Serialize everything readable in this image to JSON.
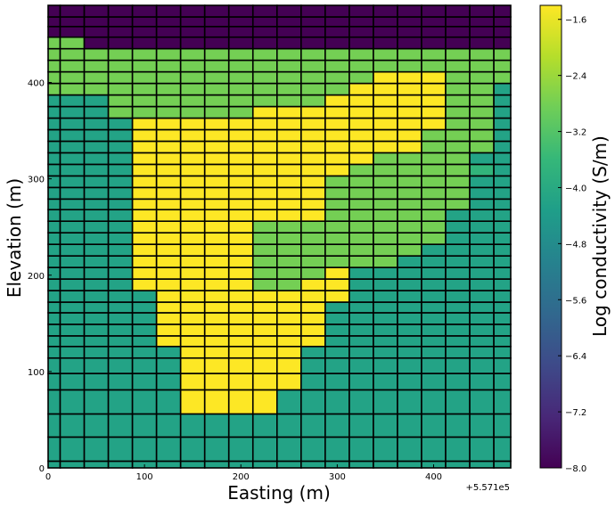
{
  "chart_data": {
    "type": "heatmap",
    "title": "",
    "xlabel": "Easting (m)",
    "ylabel": "Elevation (m)",
    "x_offset_label": "+5.571e5",
    "xlim": [
      0,
      480
    ],
    "ylim": [
      0,
      480
    ],
    "xticks": [
      0,
      100,
      200,
      300,
      400
    ],
    "yticks": [
      0,
      100,
      200,
      300,
      400
    ],
    "x_edges": [
      0,
      12.5,
      37.5,
      62.5,
      87.5,
      112.5,
      137.5,
      162.5,
      187.5,
      212.5,
      237.5,
      262.5,
      287.5,
      312.5,
      337.5,
      362.5,
      387.5,
      412.5,
      437.5,
      462.5,
      480
    ],
    "y_edges": [
      0,
      7,
      32,
      56,
      81,
      98,
      114,
      126,
      137,
      149,
      161,
      172,
      184,
      196,
      208,
      220,
      232,
      244,
      256,
      268,
      279,
      291,
      303,
      315,
      327,
      339,
      351,
      363,
      375,
      387,
      399,
      411,
      423,
      435,
      447,
      458,
      468,
      480
    ],
    "values": [
      [
        -4.2,
        -4.2,
        -4.2,
        -4.2,
        -4.2,
        -4.2,
        -4.2,
        -4.2,
        -4.2,
        -4.2,
        -4.2,
        -4.2,
        -4.2,
        -4.2,
        -4.2,
        -4.2,
        -4.2,
        -4.2,
        -4.2,
        -4.2
      ],
      [
        -4.2,
        -4.2,
        -4.2,
        -4.2,
        -4.2,
        -4.2,
        -4.2,
        -4.2,
        -4.2,
        -4.2,
        -4.2,
        -4.2,
        -4.2,
        -4.2,
        -4.2,
        -4.2,
        -4.2,
        -4.2,
        -4.2,
        -4.2
      ],
      [
        -4.2,
        -4.2,
        -4.2,
        -4.2,
        -4.2,
        -4.2,
        -4.2,
        -4.2,
        -4.2,
        -4.2,
        -4.2,
        -4.2,
        -4.2,
        -4.2,
        -4.2,
        -4.2,
        -4.2,
        -4.2,
        -4.2,
        -4.2
      ],
      [
        -4.2,
        -4.2,
        -4.2,
        -4.2,
        -4.2,
        -4.2,
        -1.4,
        -1.4,
        -1.4,
        -1.4,
        -4.2,
        -4.2,
        -4.2,
        -4.2,
        -4.2,
        -4.2,
        -4.2,
        -4.2,
        -4.2,
        -4.2
      ],
      [
        -4.2,
        -4.2,
        -4.2,
        -4.2,
        -4.2,
        -4.2,
        -1.4,
        -1.4,
        -1.4,
        -1.4,
        -1.4,
        -4.2,
        -4.2,
        -4.2,
        -4.2,
        -4.2,
        -4.2,
        -4.2,
        -4.2,
        -4.2
      ],
      [
        -4.2,
        -4.2,
        -4.2,
        -4.2,
        -4.2,
        -4.2,
        -1.4,
        -1.4,
        -1.4,
        -1.4,
        -1.4,
        -4.2,
        -4.2,
        -4.2,
        -4.2,
        -4.2,
        -4.2,
        -4.2,
        -4.2,
        -4.2
      ],
      [
        -4.2,
        -4.2,
        -4.2,
        -4.2,
        -4.2,
        -4.2,
        -1.4,
        -1.4,
        -1.4,
        -1.4,
        -1.4,
        -4.2,
        -4.2,
        -4.2,
        -4.2,
        -4.2,
        -4.2,
        -4.2,
        -4.2,
        -4.2
      ],
      [
        -4.2,
        -4.2,
        -4.2,
        -4.2,
        -4.2,
        -1.4,
        -1.4,
        -1.4,
        -1.4,
        -1.4,
        -1.4,
        -1.4,
        -4.2,
        -4.2,
        -4.2,
        -4.2,
        -4.2,
        -4.2,
        -4.2,
        -4.2
      ],
      [
        -4.2,
        -4.2,
        -4.2,
        -4.2,
        -4.2,
        -1.4,
        -1.4,
        -1.4,
        -1.4,
        -1.4,
        -1.4,
        -1.4,
        -4.2,
        -4.2,
        -4.2,
        -4.2,
        -4.2,
        -4.2,
        -4.2,
        -4.2
      ],
      [
        -4.2,
        -4.2,
        -4.2,
        -4.2,
        -4.2,
        -1.4,
        -1.4,
        -1.4,
        -1.4,
        -1.4,
        -1.4,
        -1.4,
        -4.2,
        -4.2,
        -4.2,
        -4.2,
        -4.2,
        -4.2,
        -4.2,
        -4.2
      ],
      [
        -4.2,
        -4.2,
        -4.2,
        -4.2,
        -4.2,
        -1.4,
        -1.4,
        -1.4,
        -1.4,
        -1.4,
        -1.4,
        -1.4,
        -4.2,
        -4.2,
        -4.2,
        -4.2,
        -4.2,
        -4.2,
        -4.2,
        -4.2
      ],
      [
        -4.2,
        -4.2,
        -4.2,
        -4.2,
        -4.2,
        -1.4,
        -1.4,
        -1.4,
        -1.4,
        -1.4,
        -1.4,
        -1.4,
        -1.4,
        -4.2,
        -4.2,
        -4.2,
        -4.2,
        -4.2,
        -4.2,
        -4.2
      ],
      [
        -4.2,
        -4.2,
        -4.2,
        -4.2,
        -1.4,
        -1.4,
        -1.4,
        -1.4,
        -1.4,
        -2.8,
        -2.8,
        -1.4,
        -1.4,
        -4.2,
        -4.2,
        -4.2,
        -4.2,
        -4.2,
        -4.2,
        -4.2
      ],
      [
        -4.2,
        -4.2,
        -4.2,
        -4.2,
        -1.4,
        -1.4,
        -1.4,
        -1.4,
        -1.4,
        -2.8,
        -2.8,
        -2.8,
        -1.4,
        -4.2,
        -4.2,
        -4.2,
        -4.2,
        -4.2,
        -4.2,
        -4.2
      ],
      [
        -4.2,
        -4.2,
        -4.2,
        -4.2,
        -1.4,
        -1.4,
        -1.4,
        -1.4,
        -1.4,
        -2.8,
        -2.8,
        -2.8,
        -2.8,
        -2.8,
        -2.8,
        -4.2,
        -4.2,
        -4.2,
        -4.2,
        -4.2
      ],
      [
        -4.2,
        -4.2,
        -4.2,
        -4.2,
        -1.4,
        -1.4,
        -1.4,
        -1.4,
        -1.4,
        -2.8,
        -2.8,
        -2.8,
        -2.8,
        -2.8,
        -2.8,
        -2.8,
        -4.2,
        -4.2,
        -4.2,
        -4.2
      ],
      [
        -4.2,
        -4.2,
        -4.2,
        -4.2,
        -1.4,
        -1.4,
        -1.4,
        -1.4,
        -1.4,
        -2.8,
        -2.8,
        -2.8,
        -2.8,
        -2.8,
        -2.8,
        -2.8,
        -2.8,
        -4.2,
        -4.2,
        -4.2
      ],
      [
        -4.2,
        -4.2,
        -4.2,
        -4.2,
        -1.4,
        -1.4,
        -1.4,
        -1.4,
        -1.4,
        -2.8,
        -2.8,
        -2.8,
        -2.8,
        -2.8,
        -2.8,
        -2.8,
        -2.8,
        -4.2,
        -4.2,
        -4.2
      ],
      [
        -4.2,
        -4.2,
        -4.2,
        -4.2,
        -1.4,
        -1.4,
        -1.4,
        -1.4,
        -1.4,
        -1.4,
        -1.4,
        -1.4,
        -2.8,
        -2.8,
        -2.8,
        -2.8,
        -2.8,
        -4.2,
        -4.2,
        -4.2
      ],
      [
        -4.2,
        -4.2,
        -4.2,
        -4.2,
        -1.4,
        -1.4,
        -1.4,
        -1.4,
        -1.4,
        -1.4,
        -1.4,
        -1.4,
        -2.8,
        -2.8,
        -2.8,
        -2.8,
        -2.8,
        -2.8,
        -4.2,
        -4.2
      ],
      [
        -4.2,
        -4.2,
        -4.2,
        -4.2,
        -1.4,
        -1.4,
        -1.4,
        -1.4,
        -1.4,
        -1.4,
        -1.4,
        -1.4,
        -2.8,
        -2.8,
        -2.8,
        -2.8,
        -2.8,
        -2.8,
        -4.2,
        -4.2
      ],
      [
        -4.2,
        -4.2,
        -4.2,
        -4.2,
        -1.4,
        -1.4,
        -1.4,
        -1.4,
        -1.4,
        -1.4,
        -1.4,
        -1.4,
        -2.8,
        -2.8,
        -2.8,
        -2.8,
        -2.8,
        -2.8,
        -4.2,
        -4.2
      ],
      [
        -4.2,
        -4.2,
        -4.2,
        -4.2,
        -1.4,
        -1.4,
        -1.4,
        -1.4,
        -1.4,
        -1.4,
        -1.4,
        -1.4,
        -1.4,
        -2.8,
        -2.8,
        -2.8,
        -2.8,
        -2.8,
        -3.7,
        -4.2
      ],
      [
        -4.2,
        -4.2,
        -4.2,
        -4.2,
        -1.4,
        -1.4,
        -1.4,
        -1.4,
        -1.4,
        -1.4,
        -1.4,
        -1.4,
        -1.4,
        -1.4,
        -2.8,
        -2.8,
        -2.8,
        -2.8,
        -4.2,
        -4.2
      ],
      [
        -4.2,
        -4.2,
        -4.2,
        -4.2,
        -1.4,
        -1.4,
        -1.4,
        -1.4,
        -1.4,
        -1.4,
        -1.4,
        -1.4,
        -1.4,
        -1.4,
        -1.4,
        -1.4,
        -2.8,
        -2.8,
        -2.8,
        -4.2
      ],
      [
        -4.2,
        -4.2,
        -4.2,
        -4.2,
        -1.4,
        -1.4,
        -1.4,
        -1.4,
        -1.4,
        -1.4,
        -1.4,
        -1.4,
        -1.4,
        -1.4,
        -1.4,
        -1.4,
        -2.8,
        -2.8,
        -2.8,
        -4.2
      ],
      [
        -4.2,
        -4.2,
        -4.2,
        -4.2,
        -1.4,
        -1.4,
        -1.4,
        -1.4,
        -1.4,
        -1.4,
        -1.4,
        -1.4,
        -1.4,
        -1.4,
        -1.4,
        -1.4,
        -1.4,
        -2.8,
        -2.8,
        -4.2
      ],
      [
        -4.2,
        -4.2,
        -4.2,
        -2.8,
        -2.8,
        -2.8,
        -2.8,
        -2.8,
        -2.8,
        -1.4,
        -1.4,
        -1.4,
        -1.4,
        -1.4,
        -1.4,
        -1.4,
        -1.4,
        -2.8,
        -2.8,
        -4.2
      ],
      [
        -4.2,
        -4.2,
        -4.2,
        -2.8,
        -2.8,
        -2.8,
        -2.8,
        -2.8,
        -2.8,
        -2.8,
        -2.8,
        -2.8,
        -1.4,
        -1.4,
        -1.4,
        -1.4,
        -1.4,
        -2.8,
        -2.8,
        -4.2
      ],
      [
        -2.8,
        -2.8,
        -2.8,
        -2.8,
        -2.8,
        -2.8,
        -2.8,
        -2.8,
        -2.8,
        -2.8,
        -2.8,
        -2.8,
        -2.8,
        -1.4,
        -1.4,
        -1.4,
        -1.4,
        -2.8,
        -2.8,
        -4.2
      ],
      [
        -2.8,
        -2.8,
        -2.8,
        -2.8,
        -2.8,
        -2.8,
        -2.8,
        -2.8,
        -2.8,
        -2.8,
        -2.8,
        -2.8,
        -2.8,
        -2.8,
        -1.4,
        -1.4,
        -1.4,
        -2.8,
        -2.8,
        -2.8
      ],
      [
        -2.8,
        -2.8,
        -2.8,
        -2.8,
        -2.8,
        -2.8,
        -2.8,
        -2.8,
        -2.8,
        -2.8,
        -2.8,
        -2.8,
        -2.8,
        -2.8,
        -2.8,
        -2.8,
        -2.8,
        -2.8,
        -2.8,
        -2.8
      ],
      [
        -2.8,
        -2.8,
        -2.8,
        -2.8,
        -2.8,
        -2.8,
        -2.8,
        -2.8,
        -2.8,
        -2.8,
        -2.8,
        -2.8,
        -2.8,
        -2.8,
        -2.8,
        -2.8,
        -2.8,
        -2.8,
        -2.8,
        -2.8
      ],
      [
        -2.8,
        -2.8,
        -8.0,
        -8.0,
        -8.0,
        -8.0,
        -8.0,
        -8.0,
        -8.0,
        -8.0,
        -8.0,
        -8.0,
        -8.0,
        -8.0,
        -8.0,
        -8.0,
        -8.0,
        -8.0,
        -8.0,
        -8.0
      ],
      [
        -8.0,
        -8.0,
        -8.0,
        -8.0,
        -8.0,
        -8.0,
        -8.0,
        -8.0,
        -8.0,
        -8.0,
        -8.0,
        -8.0,
        -8.0,
        -8.0,
        -8.0,
        -8.0,
        -8.0,
        -8.0,
        -8.0,
        -8.0
      ],
      [
        -8.0,
        -8.0,
        -8.0,
        -8.0,
        -8.0,
        -8.0,
        -8.0,
        -8.0,
        -8.0,
        -8.0,
        -8.0,
        -8.0,
        -8.0,
        -8.0,
        -8.0,
        -8.0,
        -8.0,
        -8.0,
        -8.0,
        -8.0
      ],
      [
        -8.0,
        -8.0,
        -8.0,
        -8.0,
        -8.0,
        -8.0,
        -8.0,
        -8.0,
        -8.0,
        -8.0,
        -8.0,
        -8.0,
        -8.0,
        -8.0,
        -8.0,
        -8.0,
        -8.0,
        -8.0,
        -8.0,
        -8.0
      ]
    ],
    "colorbar": {
      "label": "Log conductivity (S/m)",
      "range": [
        -8.0,
        -1.4
      ],
      "ticks": [
        -1.6,
        -2.4,
        -3.2,
        -4.0,
        -4.8,
        -5.6,
        -6.4,
        -7.2,
        -8.0
      ],
      "tick_labels": [
        "−1.6",
        "−2.4",
        "−3.2",
        "−4.0",
        "−4.8",
        "−5.6",
        "−6.4",
        "−7.2",
        "−8.0"
      ],
      "colormap": "viridis",
      "colormap_stops": [
        "#440154",
        "#482878",
        "#3e4a89",
        "#31688e",
        "#26828e",
        "#1f9e89",
        "#35b779",
        "#6ece58",
        "#b5de2b",
        "#fde725"
      ]
    },
    "grid_line_color": "#000000",
    "grid": true
  }
}
